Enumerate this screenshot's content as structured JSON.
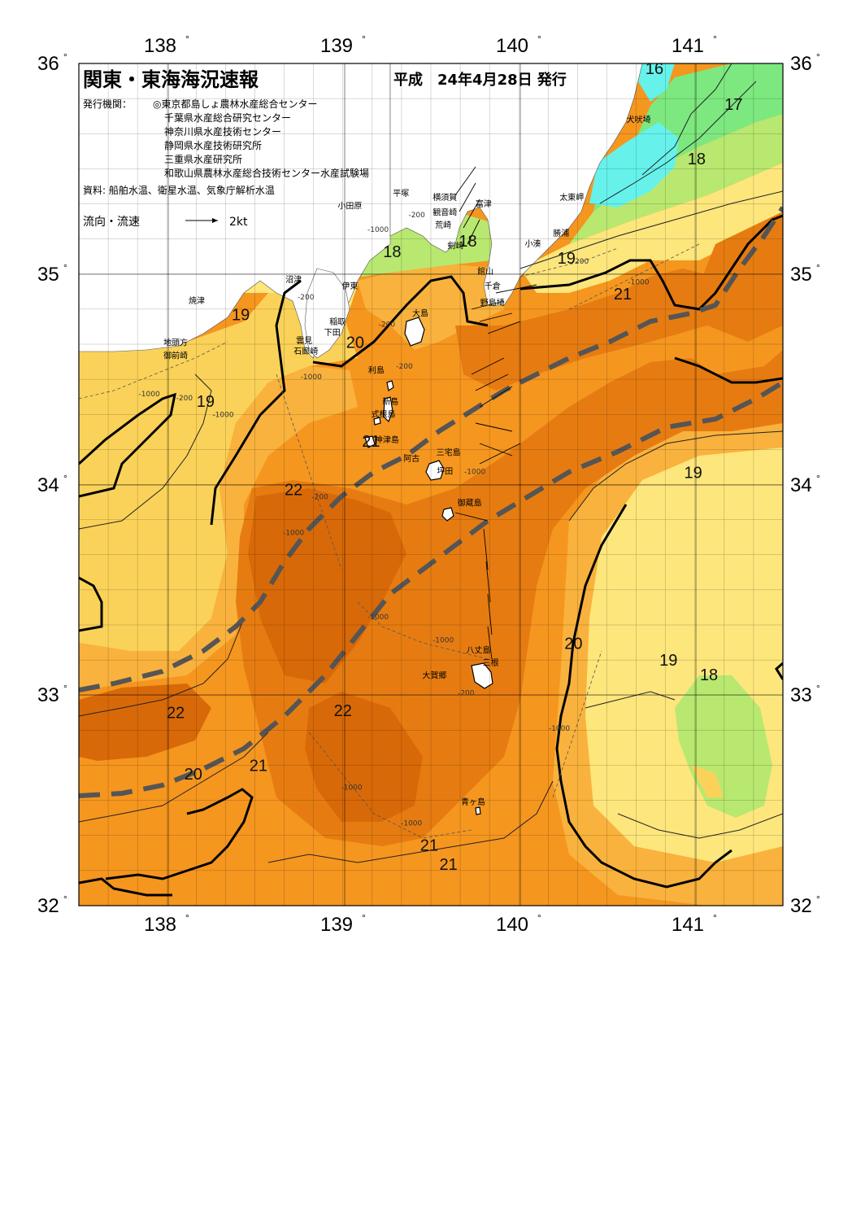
{
  "header": {
    "title": "関東・東海海況速報",
    "date": "平成　24年4月28日 発行",
    "issuer_label": "発行機関：",
    "issuers": [
      "◎東京都島しょ農林水産総合センター",
      "千葉県水産総合研究センター",
      "神奈川県水産技術センター",
      "静岡県水産技術研究所",
      "三重県水産研究所",
      "和歌山県農林水産総合技術センター水産試験場"
    ],
    "sources": "資料: 船舶水温、衛星水温、気象庁解析水温",
    "legend_label": "流向・流速",
    "legend_scale": "2kt"
  },
  "axes": {
    "lon_labels": [
      "138",
      "139",
      "140",
      "141"
    ],
    "lat_labels": [
      "36",
      "35",
      "34",
      "33",
      "32"
    ],
    "degree_symbol": "°",
    "lon_range": [
      137.5,
      141.5
    ],
    "lat_range": [
      32,
      36
    ]
  },
  "colors": {
    "c16": "#66f2ea",
    "c17": "#7de87f",
    "c18": "#b8e870",
    "c19": "#fde67c",
    "c19b": "#fbd259",
    "c20": "#f9b23d",
    "c21": "#f5961f",
    "c22": "#e67c11",
    "c22b": "#d86908",
    "land": "#ffffff",
    "current": "#555555"
  },
  "isotherm_labels": [
    {
      "text": "16",
      "lon": 140.77,
      "lat": 35.95
    },
    {
      "text": "17",
      "lon": 141.22,
      "lat": 35.78
    },
    {
      "text": "18",
      "lon": 141.01,
      "lat": 35.52
    },
    {
      "text": "18",
      "lon": 139.28,
      "lat": 35.08
    },
    {
      "text": "18",
      "lon": 139.71,
      "lat": 35.13
    },
    {
      "text": "19",
      "lon": 140.27,
      "lat": 35.05
    },
    {
      "text": "19",
      "lon": 138.42,
      "lat": 34.78
    },
    {
      "text": "20",
      "lon": 139.07,
      "lat": 34.65
    },
    {
      "text": "21",
      "lon": 140.59,
      "lat": 34.88
    },
    {
      "text": "19",
      "lon": 138.22,
      "lat": 34.37
    },
    {
      "text": "21",
      "lon": 139.16,
      "lat": 34.18
    },
    {
      "text": "22",
      "lon": 138.72,
      "lat": 33.95
    },
    {
      "text": "19",
      "lon": 140.99,
      "lat": 34.03
    },
    {
      "text": "20",
      "lon": 140.31,
      "lat": 33.22
    },
    {
      "text": "19",
      "lon": 140.85,
      "lat": 33.14
    },
    {
      "text": "18",
      "lon": 141.08,
      "lat": 33.07
    },
    {
      "text": "22",
      "lon": 138.05,
      "lat": 32.89
    },
    {
      "text": "22",
      "lon": 139.0,
      "lat": 32.9
    },
    {
      "text": "20",
      "lon": 138.15,
      "lat": 32.6
    },
    {
      "text": "21",
      "lon": 138.52,
      "lat": 32.64
    },
    {
      "text": "21",
      "lon": 139.49,
      "lat": 32.26
    },
    {
      "text": "21",
      "lon": 139.6,
      "lat": 32.17
    }
  ],
  "places": [
    {
      "text": "犬吠埼",
      "lon": 140.68,
      "lat": 35.72
    },
    {
      "text": "太東岬",
      "lon": 140.3,
      "lat": 35.35
    },
    {
      "text": "勝浦",
      "lon": 140.24,
      "lat": 35.18
    },
    {
      "text": "小湊",
      "lon": 140.08,
      "lat": 35.13
    },
    {
      "text": "富津",
      "lon": 139.8,
      "lat": 35.32
    },
    {
      "text": "横須賀",
      "lon": 139.58,
      "lat": 35.35
    },
    {
      "text": "観音崎",
      "lon": 139.58,
      "lat": 35.28
    },
    {
      "text": "荒崎",
      "lon": 139.57,
      "lat": 35.22
    },
    {
      "text": "平塚",
      "lon": 139.33,
      "lat": 35.37
    },
    {
      "text": "小田原",
      "lon": 139.04,
      "lat": 35.31
    },
    {
      "text": "剣崎",
      "lon": 139.64,
      "lat": 35.12
    },
    {
      "text": "館山",
      "lon": 139.81,
      "lat": 35.0
    },
    {
      "text": "千倉",
      "lon": 139.85,
      "lat": 34.93
    },
    {
      "text": "野島埼",
      "lon": 139.85,
      "lat": 34.85
    },
    {
      "text": "沼津",
      "lon": 138.72,
      "lat": 34.96
    },
    {
      "text": "伊東",
      "lon": 139.04,
      "lat": 34.93
    },
    {
      "text": "焼津",
      "lon": 138.17,
      "lat": 34.86
    },
    {
      "text": "大島",
      "lon": 139.44,
      "lat": 34.8
    },
    {
      "text": "稲取",
      "lon": 138.97,
      "lat": 34.76
    },
    {
      "text": "下田",
      "lon": 138.94,
      "lat": 34.71
    },
    {
      "text": "雲見",
      "lon": 138.78,
      "lat": 34.67
    },
    {
      "text": "石廊崎",
      "lon": 138.79,
      "lat": 34.62
    },
    {
      "text": "地頭方",
      "lon": 138.05,
      "lat": 34.66
    },
    {
      "text": "御前崎",
      "lon": 138.05,
      "lat": 34.6
    },
    {
      "text": "利島",
      "lon": 139.19,
      "lat": 34.53
    },
    {
      "text": "新島",
      "lon": 139.27,
      "lat": 34.38
    },
    {
      "text": "式根島",
      "lon": 139.23,
      "lat": 34.32
    },
    {
      "text": "神津島",
      "lon": 139.25,
      "lat": 34.2
    },
    {
      "text": "三宅島",
      "lon": 139.6,
      "lat": 34.14
    },
    {
      "text": "阿古",
      "lon": 139.39,
      "lat": 34.11
    },
    {
      "text": "坪田",
      "lon": 139.58,
      "lat": 34.05
    },
    {
      "text": "御蔵島",
      "lon": 139.72,
      "lat": 33.9
    },
    {
      "text": "八丈島",
      "lon": 139.77,
      "lat": 33.2
    },
    {
      "text": "三根",
      "lon": 139.84,
      "lat": 33.14
    },
    {
      "text": "大賀郷",
      "lon": 139.52,
      "lat": 33.08
    },
    {
      "text": "青ヶ島",
      "lon": 139.74,
      "lat": 32.48
    }
  ],
  "depth_labels": [
    {
      "text": "-200",
      "lon": 139.42,
      "lat": 35.27
    },
    {
      "text": "-1000",
      "lon": 139.2,
      "lat": 35.2
    },
    {
      "text": "-200",
      "lon": 138.79,
      "lat": 34.88
    },
    {
      "text": "-200",
      "lon": 139.25,
      "lat": 34.75
    },
    {
      "text": "-200",
      "lon": 139.35,
      "lat": 34.55
    },
    {
      "text": "-1000",
      "lon": 138.82,
      "lat": 34.5
    },
    {
      "text": "-200",
      "lon": 138.1,
      "lat": 34.4
    },
    {
      "text": "-1000",
      "lon": 137.9,
      "lat": 34.42
    },
    {
      "text": "-1000",
      "lon": 138.32,
      "lat": 34.32
    },
    {
      "text": "-200",
      "lon": 138.87,
      "lat": 33.93
    },
    {
      "text": "-1000",
      "lon": 138.72,
      "lat": 33.76
    },
    {
      "text": "-1000",
      "lon": 140.68,
      "lat": 34.95
    },
    {
      "text": "-200",
      "lon": 140.35,
      "lat": 35.05
    },
    {
      "text": "-1000",
      "lon": 139.2,
      "lat": 33.36
    },
    {
      "text": "-1000",
      "lon": 139.57,
      "lat": 33.25
    },
    {
      "text": "-200",
      "lon": 139.7,
      "lat": 33.0
    },
    {
      "text": "-1000",
      "lon": 140.23,
      "lat": 32.83
    },
    {
      "text": "-1000",
      "lon": 139.05,
      "lat": 32.55
    },
    {
      "text": "-1000",
      "lon": 139.39,
      "lat": 32.38
    },
    {
      "text": "-1000",
      "lon": 139.75,
      "lat": 34.05
    }
  ]
}
